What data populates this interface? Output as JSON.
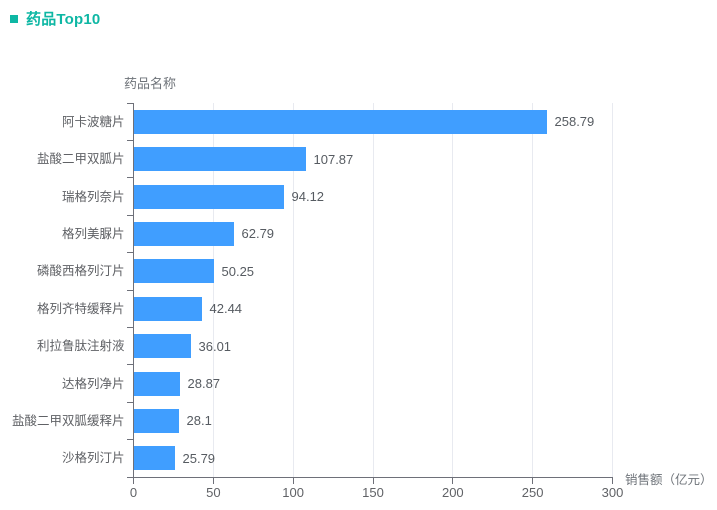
{
  "title": {
    "text": "药品Top10",
    "color": "#0eb7a4"
  },
  "chart_data": {
    "type": "bar",
    "orientation": "horizontal",
    "title": "药品Top10",
    "y_axis_name": "药品名称",
    "x_axis_name": "销售额（亿元）",
    "categories": [
      "阿卡波糖片",
      "盐酸二甲双胍片",
      "瑞格列奈片",
      "格列美脲片",
      "磷酸西格列汀片",
      "格列齐特缓释片",
      "利拉鲁肽注射液",
      "达格列净片",
      "盐酸二甲双胍缓释片",
      "沙格列汀片"
    ],
    "values": [
      258.79,
      107.87,
      94.12,
      62.79,
      50.25,
      42.44,
      36.01,
      28.87,
      28.1,
      25.79
    ],
    "value_labels": [
      "258.79",
      "107.87",
      "94.12",
      "62.79",
      "50.25",
      "42.44",
      "36.01",
      "28.87",
      "28.1",
      "25.79"
    ],
    "xlim": [
      0,
      300
    ],
    "x_ticks": [
      0,
      50,
      100,
      150,
      200,
      250,
      300
    ],
    "bar_color": "#409eff",
    "grid_color": "#e8eaf0",
    "axis_color": "#6e7079",
    "label_color": "#565b61",
    "grid": true,
    "legend": false
  }
}
